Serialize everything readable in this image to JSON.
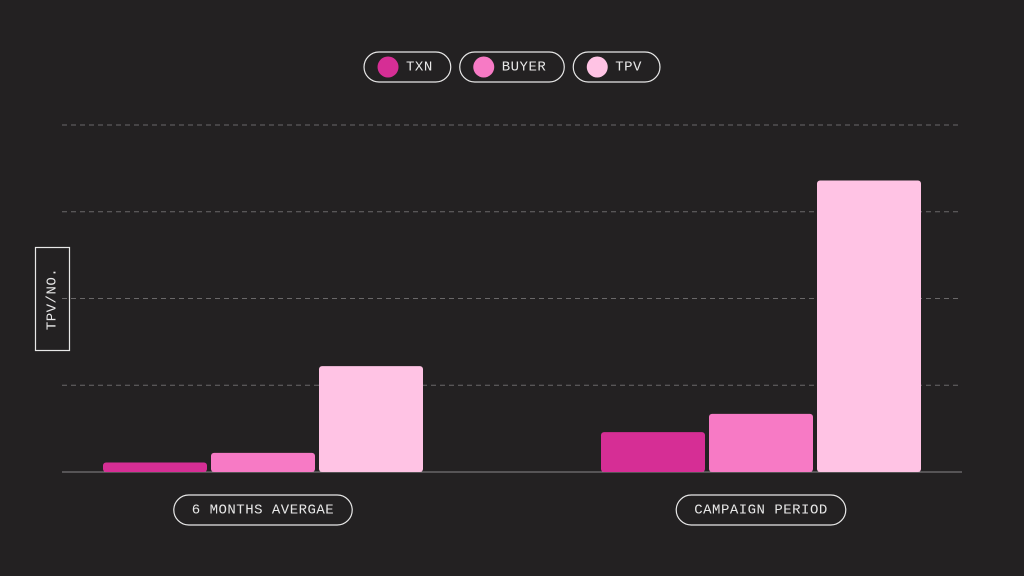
{
  "chart_data": {
    "type": "bar",
    "y_label": "TPV/NO.",
    "categories": [
      "6 MONTHS AVERGAE",
      "CAMPAIGN PERIOD"
    ],
    "series": [
      {
        "name": "TXN",
        "color": "#d62e95",
        "values": [
          0.11,
          0.46
        ]
      },
      {
        "name": "BUYER",
        "color": "#f77ac5",
        "values": [
          0.22,
          0.67
        ]
      },
      {
        "name": "TPV",
        "color": "#ffc3e4",
        "values": [
          1.22,
          3.36
        ]
      }
    ],
    "ylim": [
      0,
      4
    ],
    "gridlines": [
      1,
      2,
      3,
      4
    ],
    "grid": true,
    "legend": "top"
  }
}
